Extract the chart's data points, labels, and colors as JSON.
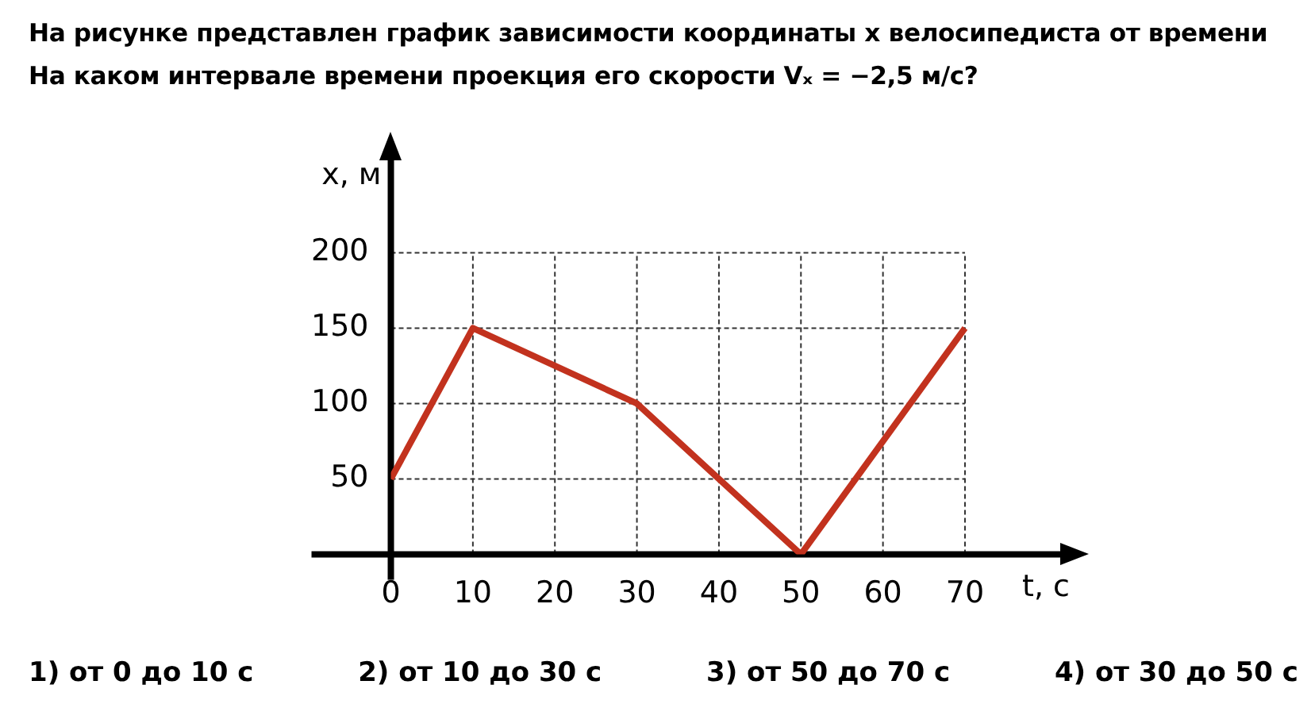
{
  "chart_data": {
    "type": "line",
    "title": "На рисунке представлен график зависимости координаты x велосипедиста от времени",
    "subtitle": "На каком интервале времени проекция его скорости Vₓ = −2,5 м/с?",
    "xlabel": "t, с",
    "ylabel": "x, м",
    "x": [
      0,
      10,
      30,
      50,
      70
    ],
    "series": [
      {
        "color": "#c2321e",
        "values": [
          50,
          150,
          100,
          0,
          150
        ]
      }
    ],
    "xlim": [
      0,
      82
    ],
    "xticks": [
      0,
      10,
      20,
      30,
      40,
      50,
      60,
      70
    ],
    "ylim": [
      0,
      263
    ],
    "yticks": [
      50,
      100,
      150,
      200
    ],
    "grid": true,
    "legend": false,
    "marker": "none",
    "line_style": "solid",
    "annotations": [
      "1) от 0 до 10 с",
      "2) от 10 до 30 с",
      "3) от 50 до 70 с",
      "4) от 30 до 50 с"
    ]
  }
}
